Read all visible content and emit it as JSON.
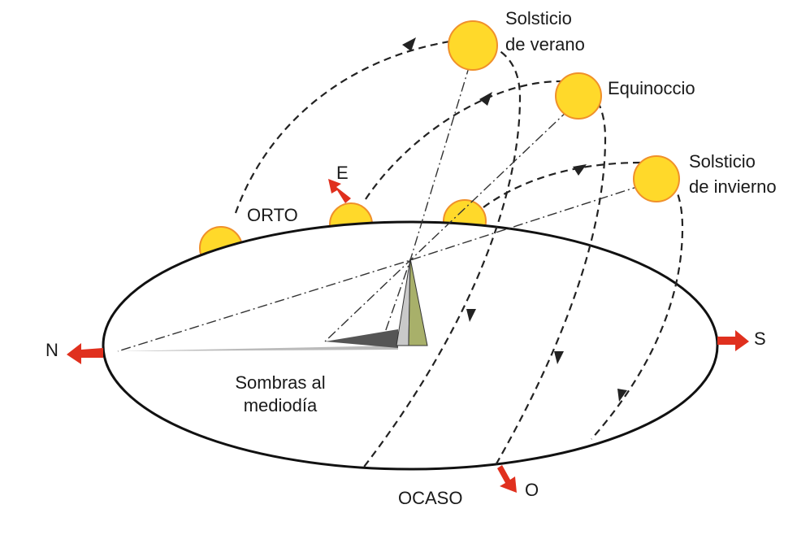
{
  "labels": {
    "summer": [
      "Solsticio",
      "de verano"
    ],
    "equinox": "Equinoccio",
    "winter": [
      "Solsticio",
      "de invierno"
    ],
    "sunrise": "ORTO",
    "east": "E",
    "north": "N",
    "south": "S",
    "sunset": "OCASO",
    "west": "O",
    "shadows": [
      "Sombras al",
      "mediodía"
    ]
  }
}
